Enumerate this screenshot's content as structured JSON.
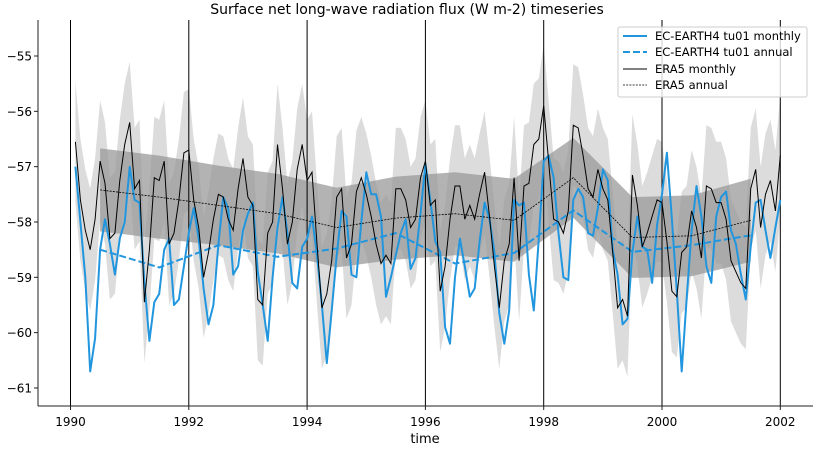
{
  "chart_data": {
    "type": "line",
    "title": "Surface net long-wave radiation flux (W m-2) timeseries",
    "xlabel": "time",
    "ylabel": "",
    "xlim": [
      1989.45,
      2002.58
    ],
    "ylim": [
      -61.33,
      -54.35
    ],
    "x_ticks": [
      "1990",
      "1992",
      "1994",
      "1996",
      "1998",
      "2000",
      "2002"
    ],
    "y_ticks": [
      "−55",
      "−56",
      "−57",
      "−58",
      "−59",
      "−60",
      "−61"
    ],
    "vertical_gridlines_at": [
      1990,
      1992,
      1994,
      1996,
      1998,
      2000,
      2002
    ],
    "legend_position": "top-right",
    "colors": {
      "model": "#2196de",
      "era5": "#000000",
      "era5_monthly_band": "#dcdcdc",
      "era5_annual_band": "#a9a9a9"
    },
    "years": [
      1990,
      1991,
      1992,
      1993,
      1994,
      1995,
      1996,
      1997,
      1998,
      1999,
      2000,
      2001
    ],
    "series": [
      {
        "name": "EC-EARTH4 tu01 monthly",
        "style": "solid",
        "color": "#2196de",
        "monthly_values_by_year": [
          [
            -57.0,
            -58.0,
            -59.0,
            -60.7,
            -60.1,
            -58.5,
            -57.95,
            -58.4,
            -58.95,
            -58.3,
            -58.0,
            -57.0
          ],
          [
            -57.6,
            -57.65,
            -59.1,
            -60.15,
            -59.45,
            -59.3,
            -58.5,
            -58.3,
            -59.5,
            -59.4,
            -58.8,
            -58.2
          ],
          [
            -57.75,
            -58.3,
            -59.2,
            -59.85,
            -59.5,
            -58.4,
            -57.55,
            -57.75,
            -58.95,
            -58.8,
            -58.15,
            -57.85
          ],
          [
            -57.65,
            -58.9,
            -59.5,
            -60.15,
            -59.0,
            -58.1,
            -57.55,
            -58.2,
            -59.1,
            -59.2,
            -58.45,
            -58.3
          ],
          [
            -57.9,
            -58.6,
            -59.5,
            -60.55,
            -59.6,
            -58.6,
            -57.8,
            -57.9,
            -58.95,
            -59.0,
            -58.0,
            -57.1
          ],
          [
            -57.5,
            -57.5,
            -57.9,
            -59.35,
            -59.0,
            -58.6,
            -58.2,
            -57.95,
            -58.85,
            -58.65,
            -57.85,
            -56.95
          ],
          [
            -57.6,
            -58.35,
            -58.55,
            -59.9,
            -60.2,
            -59.0,
            -58.3,
            -58.8,
            -59.35,
            -59.2,
            -58.35,
            -57.65
          ],
          [
            -57.95,
            -58.55,
            -59.65,
            -60.2,
            -59.6,
            -57.6,
            -57.7,
            -57.65,
            -58.95,
            -59.6,
            -58.3,
            -56.9
          ],
          [
            -56.8,
            -57.2,
            -58.2,
            -59.0,
            -59.05,
            -57.6,
            -57.4,
            -57.55,
            -58.2,
            -58.25,
            -57.75,
            -57.05
          ],
          [
            -57.25,
            -58.5,
            -58.95,
            -59.85,
            -59.75,
            -58.55,
            -57.9,
            -58.45,
            -58.5,
            -59.1,
            -58.05,
            -57.5
          ],
          [
            -56.75,
            -57.95,
            -59.25,
            -60.7,
            -59.4,
            -58.15,
            -57.35,
            -57.9,
            -58.8,
            -59.1,
            -57.9,
            -57.55
          ],
          [
            -57.45,
            -58.15,
            -58.4,
            -58.95,
            -59.4,
            -58.45,
            -57.65,
            -57.6,
            -58.15,
            -58.65,
            -58.1,
            -57.6
          ]
        ]
      },
      {
        "name": "EC-EARTH4 tu01 annual",
        "style": "dashed",
        "color": "#2196de",
        "annual_values": [
          -58.5,
          -58.82,
          -58.42,
          -58.63,
          -58.48,
          -58.2,
          -58.75,
          -58.56,
          -57.79,
          -58.54,
          -58.42,
          -58.24
        ]
      },
      {
        "name": "ERA5 monthly",
        "style": "solid-thin",
        "color": "#000000",
        "monthly_spread": 1.1,
        "monthly_values_by_year": [
          [
            -56.55,
            -57.6,
            -58.15,
            -58.5,
            -57.95,
            -56.9,
            -57.3,
            -58.3,
            -58.2,
            -57.25,
            -56.6,
            -56.2
          ],
          [
            -57.4,
            -57.25,
            -59.45,
            -58.5,
            -57.2,
            -57.25,
            -56.9,
            -58.4,
            -58.2,
            -57.6,
            -56.75,
            -56.7
          ],
          [
            -57.6,
            -58.1,
            -59.0,
            -58.55,
            -57.95,
            -57.5,
            -57.55,
            -57.95,
            -58.15,
            -57.4,
            -56.85,
            -57.55
          ],
          [
            -57.7,
            -59.4,
            -59.5,
            -58.2,
            -58.0,
            -56.6,
            -57.4,
            -58.4,
            -58.0,
            -57.05,
            -56.6,
            -57.25
          ],
          [
            -57.1,
            -58.4,
            -59.55,
            -59.3,
            -58.7,
            -57.55,
            -57.4,
            -58.65,
            -58.4,
            -57.45,
            -57.2,
            -57.5
          ],
          [
            -57.9,
            -58.4,
            -58.75,
            -58.6,
            -58.75,
            -57.4,
            -57.4,
            -57.6,
            -58.1,
            -57.95,
            -57.2,
            -56.9
          ],
          [
            -57.7,
            -57.6,
            -59.25,
            -58.8,
            -57.95,
            -57.35,
            -57.35,
            -57.95,
            -57.7,
            -57.95,
            -57.5,
            -57.1
          ],
          [
            -57.9,
            -58.8,
            -59.55,
            -58.7,
            -58.4,
            -57.2,
            -58.7,
            -57.35,
            -57.3,
            -56.6,
            -56.5,
            -55.9
          ],
          [
            -56.9,
            -57.95,
            -58.0,
            -58.2,
            -57.8,
            -56.25,
            -56.3,
            -56.8,
            -57.4,
            -57.55,
            -57.05,
            -57.4
          ],
          [
            -57.6,
            -58.55,
            -59.55,
            -59.4,
            -59.7,
            -57.15,
            -57.7,
            -58.45,
            -58.2,
            -57.9,
            -57.6,
            -57.65
          ],
          [
            -58.35,
            -59.25,
            -59.35,
            -58.55,
            -58.45,
            -57.8,
            -58.1,
            -58.65,
            -57.35,
            -57.4,
            -57.65,
            -57.65
          ],
          [
            -57.95,
            -58.7,
            -58.9,
            -59.1,
            -59.2,
            -57.4,
            -57.05,
            -58.1,
            -57.5,
            -57.25,
            -57.8,
            -56.8
          ]
        ]
      },
      {
        "name": "ERA5 annual",
        "style": "dashed-thin",
        "color": "#000000",
        "annual_values": [
          -57.42,
          -57.55,
          -57.7,
          -57.85,
          -58.1,
          -57.93,
          -57.85,
          -57.97,
          -57.2,
          -58.28,
          -58.25,
          -57.97
        ],
        "annual_spread": [
          0.75,
          0.75,
          0.72,
          0.72,
          0.72,
          0.75,
          0.75,
          0.75,
          0.72,
          0.73,
          0.73,
          0.75
        ]
      }
    ]
  }
}
